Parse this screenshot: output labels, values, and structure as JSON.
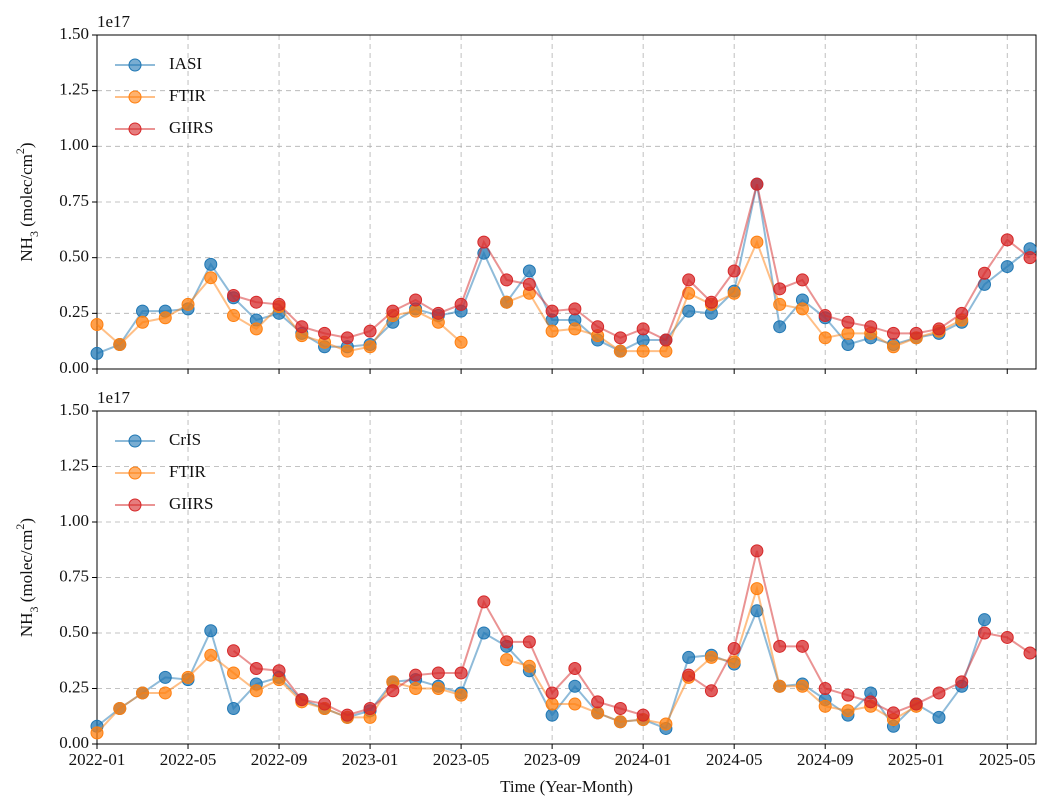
{
  "chart_data": [
    {
      "type": "line",
      "offset_label": "1e17",
      "ylabel": [
        "NH",
        "3",
        " (molec/cm",
        "2",
        ")"
      ],
      "x": [
        "2022-01",
        "2022-02",
        "2022-03",
        "2022-04",
        "2022-05",
        "2022-06",
        "2022-07",
        "2022-08",
        "2022-09",
        "2022-10",
        "2022-11",
        "2022-12",
        "2023-01",
        "2023-02",
        "2023-03",
        "2023-04",
        "2023-05",
        "2023-06",
        "2023-07",
        "2023-08",
        "2023-09",
        "2023-10",
        "2023-11",
        "2023-12",
        "2024-01",
        "2024-02",
        "2024-03",
        "2024-04",
        "2024-05",
        "2024-06",
        "2024-07",
        "2024-08",
        "2024-09",
        "2024-10",
        "2024-11",
        "2024-12",
        "2025-01",
        "2025-02",
        "2025-03",
        "2025-04",
        "2025-05",
        "2025-06"
      ],
      "xlim": [
        "2022-01",
        "2025-06"
      ],
      "xticks": [
        "2022-01",
        "2022-05",
        "2022-09",
        "2023-01",
        "2023-05",
        "2023-09",
        "2024-01",
        "2024-05",
        "2024-09",
        "2025-01",
        "2025-05"
      ],
      "ylim": [
        0,
        1.5
      ],
      "yticks": [
        {
          "value": 0,
          "label": "0.00"
        },
        {
          "value": 0.25,
          "label": "0.25"
        },
        {
          "value": 0.5,
          "label": "0.50"
        },
        {
          "value": 0.75,
          "label": "0.75"
        },
        {
          "value": 1,
          "label": "1.00"
        },
        {
          "value": 1.25,
          "label": "1.25"
        },
        {
          "value": 1.5,
          "label": "1.50"
        }
      ],
      "grid": true,
      "legend": "upper-left",
      "series": [
        {
          "name": "IASI",
          "color": "#1f77b4",
          "values": [
            0.07,
            0.11,
            0.26,
            0.26,
            0.27,
            0.47,
            0.32,
            0.22,
            0.25,
            0.16,
            0.1,
            0.1,
            0.11,
            0.21,
            0.27,
            0.24,
            0.26,
            0.52,
            0.3,
            0.44,
            0.22,
            0.22,
            0.13,
            0.08,
            0.13,
            0.13,
            0.26,
            0.25,
            0.35,
            0.83,
            0.19,
            0.31,
            0.23,
            0.11,
            0.14,
            0.11,
            0.14,
            0.16,
            0.21,
            0.38,
            0.46,
            0.54
          ]
        },
        {
          "name": "FTIR",
          "color": "#ff7f0e",
          "values": [
            0.2,
            0.11,
            0.21,
            0.23,
            0.29,
            0.41,
            0.24,
            0.18,
            0.28,
            0.15,
            0.12,
            0.08,
            0.1,
            0.24,
            0.26,
            0.21,
            0.12,
            null,
            0.3,
            0.34,
            0.17,
            0.18,
            0.15,
            0.08,
            0.08,
            0.08,
            0.34,
            0.29,
            0.34,
            0.57,
            0.29,
            0.27,
            0.14,
            0.16,
            0.16,
            0.1,
            0.14,
            0.17,
            0.22,
            null,
            null,
            null
          ]
        },
        {
          "name": "GIIRS",
          "color": "#d62728",
          "values": [
            null,
            null,
            null,
            null,
            null,
            null,
            0.33,
            0.3,
            0.29,
            0.19,
            0.16,
            0.14,
            0.17,
            0.26,
            0.31,
            0.25,
            0.29,
            0.57,
            0.4,
            0.38,
            0.26,
            0.27,
            0.19,
            0.14,
            0.18,
            0.13,
            0.4,
            0.3,
            0.44,
            0.83,
            0.36,
            0.4,
            0.24,
            0.21,
            0.19,
            0.16,
            0.16,
            0.18,
            0.25,
            0.43,
            0.58,
            0.5
          ]
        }
      ]
    },
    {
      "type": "line",
      "offset_label": "1e17",
      "ylabel": [
        "NH",
        "3",
        " (molec/cm",
        "2",
        ")"
      ],
      "xlabel": "Time (Year-Month)",
      "x": [
        "2022-01",
        "2022-02",
        "2022-03",
        "2022-04",
        "2022-05",
        "2022-06",
        "2022-07",
        "2022-08",
        "2022-09",
        "2022-10",
        "2022-11",
        "2022-12",
        "2023-01",
        "2023-02",
        "2023-03",
        "2023-04",
        "2023-05",
        "2023-06",
        "2023-07",
        "2023-08",
        "2023-09",
        "2023-10",
        "2023-11",
        "2023-12",
        "2024-01",
        "2024-02",
        "2024-03",
        "2024-04",
        "2024-05",
        "2024-06",
        "2024-07",
        "2024-08",
        "2024-09",
        "2024-10",
        "2024-11",
        "2024-12",
        "2025-01",
        "2025-02",
        "2025-03",
        "2025-04",
        "2025-05",
        "2025-06"
      ],
      "xlim": [
        "2022-01",
        "2025-06"
      ],
      "xticks": [
        "2022-01",
        "2022-05",
        "2022-09",
        "2023-01",
        "2023-05",
        "2023-09",
        "2024-01",
        "2024-05",
        "2024-09",
        "2025-01",
        "2025-05"
      ],
      "ylim": [
        0,
        1.5
      ],
      "yticks": [
        {
          "value": 0,
          "label": "0.00"
        },
        {
          "value": 0.25,
          "label": "0.25"
        },
        {
          "value": 0.5,
          "label": "0.50"
        },
        {
          "value": 0.75,
          "label": "0.75"
        },
        {
          "value": 1,
          "label": "1.00"
        },
        {
          "value": 1.25,
          "label": "1.25"
        },
        {
          "value": 1.5,
          "label": "1.50"
        }
      ],
      "grid": true,
      "legend": "upper-left",
      "series": [
        {
          "name": "CrIS",
          "color": "#1f77b4",
          "values": [
            0.08,
            0.16,
            0.23,
            0.3,
            0.29,
            0.51,
            0.16,
            0.27,
            0.3,
            0.2,
            0.16,
            0.12,
            0.15,
            0.28,
            0.29,
            0.26,
            0.23,
            0.5,
            0.44,
            0.33,
            0.13,
            0.26,
            0.14,
            0.1,
            0.11,
            0.07,
            0.39,
            0.4,
            0.36,
            0.6,
            0.26,
            0.27,
            0.2,
            0.13,
            0.23,
            0.08,
            0.18,
            0.12,
            0.26,
            0.56,
            null,
            null
          ]
        },
        {
          "name": "FTIR",
          "color": "#ff7f0e",
          "values": [
            0.05,
            0.16,
            0.23,
            0.23,
            0.3,
            0.4,
            0.32,
            0.24,
            0.29,
            0.19,
            0.16,
            0.12,
            0.12,
            0.28,
            0.25,
            0.25,
            0.22,
            null,
            0.38,
            0.35,
            0.18,
            0.18,
            0.14,
            0.1,
            0.11,
            0.09,
            0.3,
            0.39,
            0.37,
            0.7,
            0.26,
            0.26,
            0.17,
            0.15,
            0.17,
            0.11,
            0.17,
            null,
            null,
            null,
            null,
            null
          ]
        },
        {
          "name": "GIIRS",
          "color": "#d62728",
          "values": [
            null,
            null,
            null,
            null,
            null,
            null,
            0.42,
            0.34,
            0.33,
            0.2,
            0.18,
            0.13,
            0.16,
            0.24,
            0.31,
            0.32,
            0.32,
            0.64,
            0.46,
            0.46,
            0.23,
            0.34,
            0.19,
            0.16,
            0.13,
            null,
            0.31,
            0.24,
            0.43,
            0.87,
            0.44,
            0.44,
            0.25,
            0.22,
            0.19,
            0.14,
            0.18,
            0.23,
            0.28,
            0.5,
            0.48,
            0.41
          ]
        }
      ]
    }
  ]
}
